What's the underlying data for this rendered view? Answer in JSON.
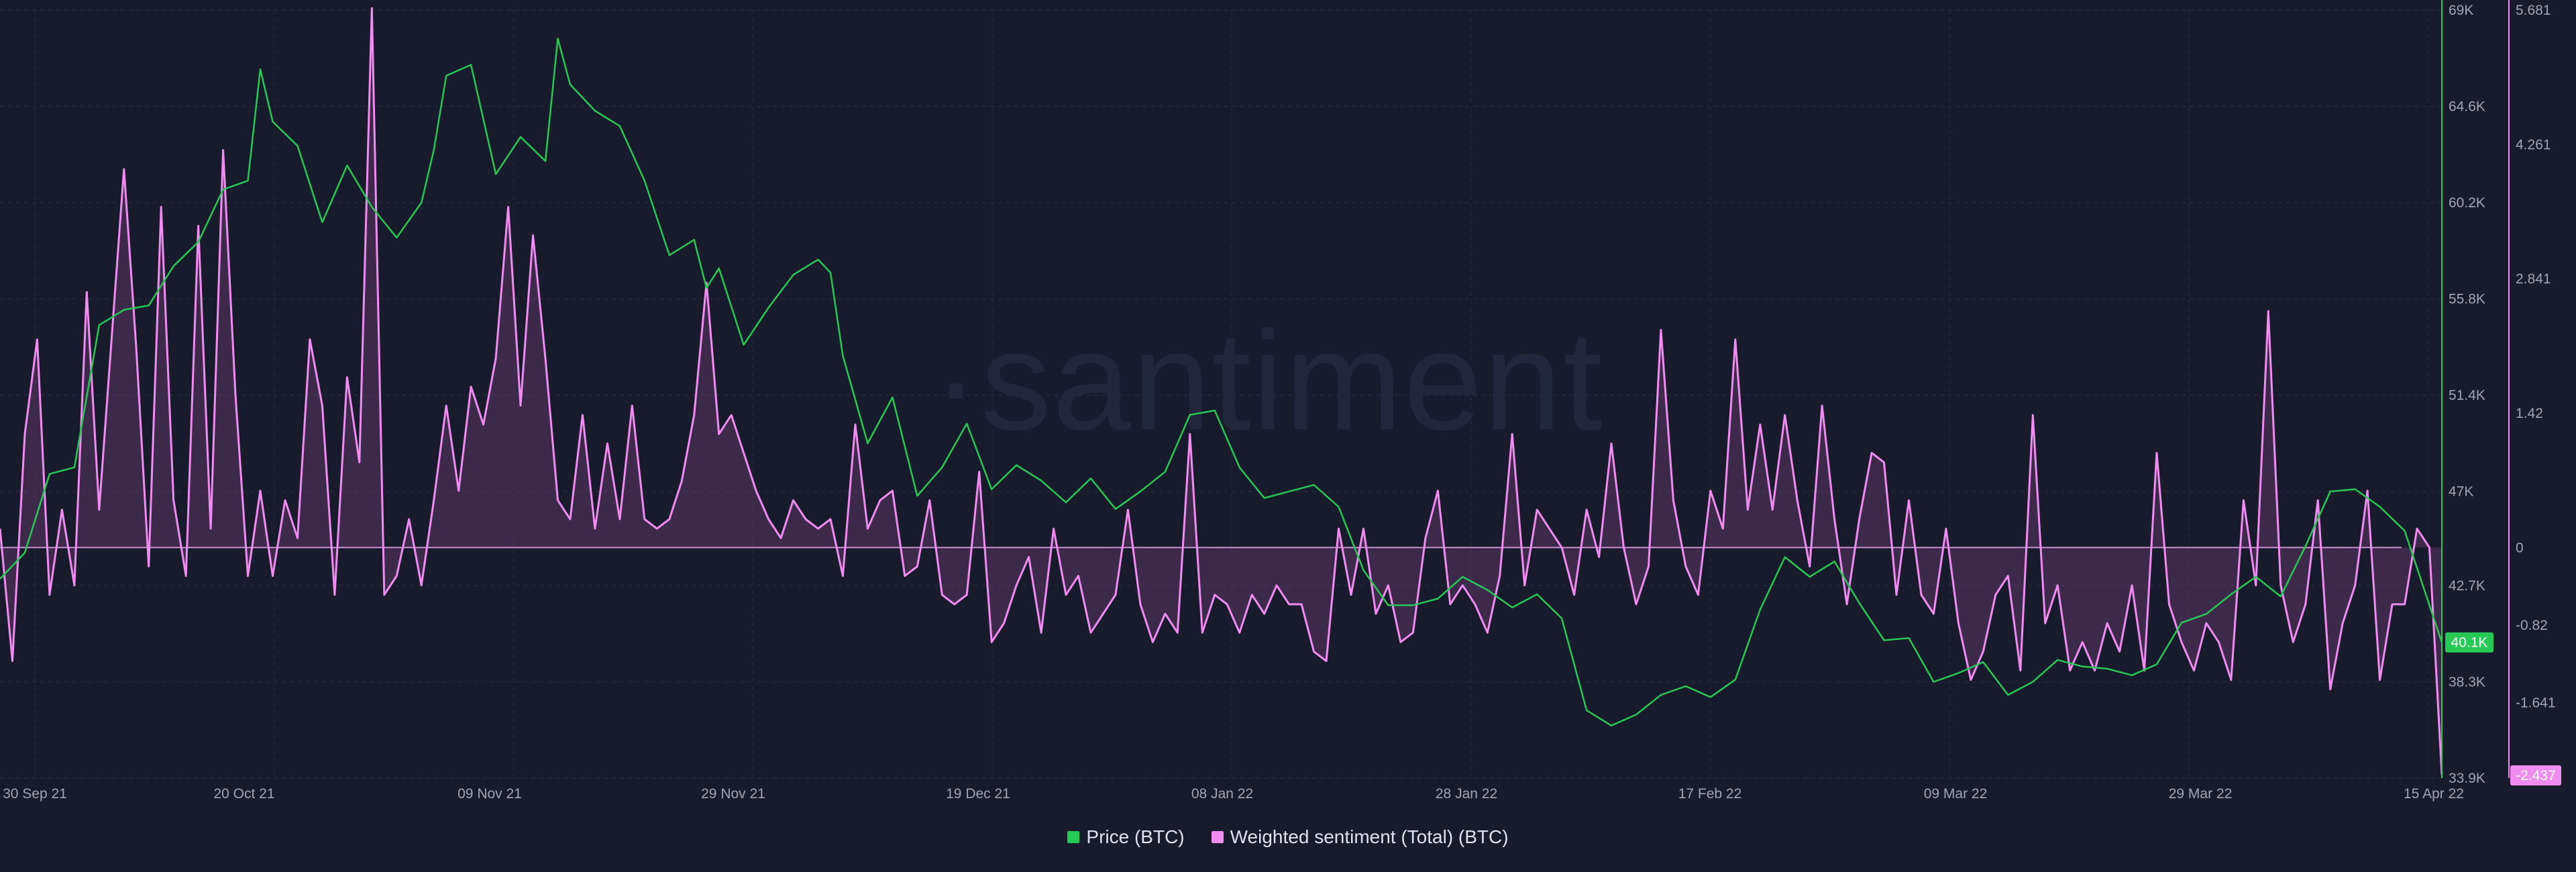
{
  "chart_data": {
    "type": "line",
    "watermark": "·santiment",
    "x_tick_labels": [
      "30 Sep 21",
      "20 Oct 21",
      "09 Nov 21",
      "29 Nov 21",
      "19 Dec 21",
      "08 Jan 22",
      "28 Jan 22",
      "17 Feb 22",
      "09 Mar 22",
      "29 Mar 22",
      "15 Apr 22"
    ],
    "x_range_days": [
      0,
      197
    ],
    "price_axis": {
      "range": [
        33900,
        69000
      ],
      "tick_values": [
        69000,
        64600,
        60200,
        55800,
        51400,
        47000,
        42700,
        38300,
        33900
      ],
      "tick_labels": [
        "69K",
        "64.6K",
        "60.2K",
        "55.8K",
        "51.4K",
        "47K",
        "42.7K",
        "38.3K",
        "33.9K"
      ],
      "current_label": "40.1K",
      "current_value": 40100
    },
    "sentiment_axis": {
      "range": [
        -2.437,
        5.681
      ],
      "tick_values": [
        5.681,
        4.261,
        2.841,
        1.42,
        0,
        -0.82,
        -1.641,
        -2.437
      ],
      "tick_labels": [
        "5.681",
        "4.261",
        "2.841",
        "1.42",
        "0",
        "-0.82",
        "-1.641"
      ],
      "current_label": "-2.437",
      "current_value": -2.437
    },
    "series": [
      {
        "name": "Price (BTC)",
        "color": "#26c953",
        "axis": "price",
        "points": [
          [
            0,
            43000
          ],
          [
            2,
            44200
          ],
          [
            4,
            47800
          ],
          [
            6,
            48100
          ],
          [
            8,
            54600
          ],
          [
            10,
            55300
          ],
          [
            12,
            55500
          ],
          [
            14,
            57300
          ],
          [
            16,
            58400
          ],
          [
            18,
            60800
          ],
          [
            20,
            61200
          ],
          [
            21,
            66300
          ],
          [
            22,
            63900
          ],
          [
            24,
            62800
          ],
          [
            26,
            59300
          ],
          [
            28,
            61900
          ],
          [
            30,
            60000
          ],
          [
            32,
            58600
          ],
          [
            34,
            60200
          ],
          [
            35,
            62600
          ],
          [
            36,
            66000
          ],
          [
            38,
            66500
          ],
          [
            40,
            61500
          ],
          [
            42,
            63200
          ],
          [
            44,
            62100
          ],
          [
            45,
            67700
          ],
          [
            46,
            65600
          ],
          [
            48,
            64400
          ],
          [
            50,
            63700
          ],
          [
            52,
            61200
          ],
          [
            54,
            57800
          ],
          [
            56,
            58500
          ],
          [
            57,
            56300
          ],
          [
            58,
            57200
          ],
          [
            60,
            53700
          ],
          [
            62,
            55400
          ],
          [
            64,
            56900
          ],
          [
            66,
            57600
          ],
          [
            67,
            57000
          ],
          [
            68,
            53200
          ],
          [
            70,
            49200
          ],
          [
            72,
            51300
          ],
          [
            74,
            46800
          ],
          [
            76,
            48100
          ],
          [
            78,
            50100
          ],
          [
            80,
            47100
          ],
          [
            82,
            48200
          ],
          [
            84,
            47500
          ],
          [
            86,
            46500
          ],
          [
            88,
            47600
          ],
          [
            90,
            46200
          ],
          [
            92,
            47000
          ],
          [
            94,
            47900
          ],
          [
            96,
            50500
          ],
          [
            98,
            50700
          ],
          [
            100,
            48100
          ],
          [
            102,
            46700
          ],
          [
            104,
            47000
          ],
          [
            106,
            47300
          ],
          [
            108,
            46300
          ],
          [
            110,
            43400
          ],
          [
            112,
            41800
          ],
          [
            114,
            41800
          ],
          [
            116,
            42100
          ],
          [
            118,
            43100
          ],
          [
            120,
            42500
          ],
          [
            122,
            41700
          ],
          [
            124,
            42300
          ],
          [
            126,
            41200
          ],
          [
            128,
            37000
          ],
          [
            130,
            36300
          ],
          [
            132,
            36800
          ],
          [
            134,
            37700
          ],
          [
            136,
            38100
          ],
          [
            138,
            37600
          ],
          [
            140,
            38400
          ],
          [
            142,
            41600
          ],
          [
            144,
            44000
          ],
          [
            146,
            43100
          ],
          [
            148,
            43800
          ],
          [
            150,
            41900
          ],
          [
            152,
            40200
          ],
          [
            154,
            40300
          ],
          [
            156,
            38300
          ],
          [
            158,
            38700
          ],
          [
            160,
            39200
          ],
          [
            162,
            37700
          ],
          [
            164,
            38300
          ],
          [
            166,
            39300
          ],
          [
            168,
            39000
          ],
          [
            170,
            38900
          ],
          [
            172,
            38600
          ],
          [
            174,
            39100
          ],
          [
            176,
            41000
          ],
          [
            178,
            41400
          ],
          [
            180,
            42300
          ],
          [
            182,
            43100
          ],
          [
            184,
            42200
          ],
          [
            186,
            44500
          ],
          [
            188,
            47000
          ],
          [
            190,
            47100
          ],
          [
            192,
            46300
          ],
          [
            194,
            45200
          ],
          [
            196,
            41800
          ],
          [
            197,
            40100
          ]
        ]
      },
      {
        "name": "Weighted sentiment (Total) (BTC)",
        "color": "#f08cf0",
        "axis": "sentiment",
        "points": [
          [
            0,
            0.2
          ],
          [
            1,
            -1.2
          ],
          [
            2,
            1.2
          ],
          [
            3,
            2.2
          ],
          [
            4,
            -0.5
          ],
          [
            5,
            0.4
          ],
          [
            6,
            -0.4
          ],
          [
            7,
            2.7
          ],
          [
            8,
            0.4
          ],
          [
            10,
            4.0
          ],
          [
            11,
            2.1
          ],
          [
            12,
            -0.2
          ],
          [
            13,
            3.6
          ],
          [
            14,
            0.5
          ],
          [
            15,
            -0.3
          ],
          [
            16,
            3.4
          ],
          [
            17,
            0.2
          ],
          [
            18,
            4.2
          ],
          [
            19,
            1.6
          ],
          [
            20,
            -0.3
          ],
          [
            21,
            0.6
          ],
          [
            22,
            -0.3
          ],
          [
            23,
            0.5
          ],
          [
            24,
            0.1
          ],
          [
            25,
            2.2
          ],
          [
            26,
            1.5
          ],
          [
            27,
            -0.5
          ],
          [
            28,
            1.8
          ],
          [
            29,
            0.9
          ],
          [
            30,
            5.7
          ],
          [
            31,
            -0.5
          ],
          [
            32,
            -0.3
          ],
          [
            33,
            0.3
          ],
          [
            34,
            -0.4
          ],
          [
            35,
            0.5
          ],
          [
            36,
            1.5
          ],
          [
            37,
            0.6
          ],
          [
            38,
            1.7
          ],
          [
            39,
            1.3
          ],
          [
            40,
            2.0
          ],
          [
            41,
            3.6
          ],
          [
            42,
            1.5
          ],
          [
            43,
            3.3
          ],
          [
            44,
            2.0
          ],
          [
            45,
            0.5
          ],
          [
            46,
            0.3
          ],
          [
            47,
            1.4
          ],
          [
            48,
            0.2
          ],
          [
            49,
            1.1
          ],
          [
            50,
            0.3
          ],
          [
            51,
            1.5
          ],
          [
            52,
            0.3
          ],
          [
            53,
            0.2
          ],
          [
            54,
            0.3
          ],
          [
            55,
            0.7
          ],
          [
            56,
            1.4
          ],
          [
            57,
            2.8
          ],
          [
            58,
            1.2
          ],
          [
            59,
            1.4
          ],
          [
            60,
            1.0
          ],
          [
            61,
            0.6
          ],
          [
            62,
            0.3
          ],
          [
            63,
            0.1
          ],
          [
            64,
            0.5
          ],
          [
            65,
            0.3
          ],
          [
            66,
            0.2
          ],
          [
            67,
            0.3
          ],
          [
            68,
            -0.3
          ],
          [
            69,
            1.3
          ],
          [
            70,
            0.2
          ],
          [
            71,
            0.5
          ],
          [
            72,
            0.6
          ],
          [
            73,
            -0.3
          ],
          [
            74,
            -0.2
          ],
          [
            75,
            0.5
          ],
          [
            76,
            -0.5
          ],
          [
            77,
            -0.6
          ],
          [
            78,
            -0.5
          ],
          [
            79,
            0.8
          ],
          [
            80,
            -1.0
          ],
          [
            81,
            -0.8
          ],
          [
            82,
            -0.4
          ],
          [
            83,
            -0.1
          ],
          [
            84,
            -0.9
          ],
          [
            85,
            0.2
          ],
          [
            86,
            -0.5
          ],
          [
            87,
            -0.3
          ],
          [
            88,
            -0.9
          ],
          [
            89,
            -0.7
          ],
          [
            90,
            -0.5
          ],
          [
            91,
            0.4
          ],
          [
            92,
            -0.6
          ],
          [
            93,
            -1.0
          ],
          [
            94,
            -0.7
          ],
          [
            95,
            -0.9
          ],
          [
            96,
            1.2
          ],
          [
            97,
            -0.9
          ],
          [
            98,
            -0.5
          ],
          [
            99,
            -0.6
          ],
          [
            100,
            -0.9
          ],
          [
            101,
            -0.5
          ],
          [
            102,
            -0.7
          ],
          [
            103,
            -0.4
          ],
          [
            104,
            -0.6
          ],
          [
            105,
            -0.6
          ],
          [
            106,
            -1.1
          ],
          [
            107,
            -1.2
          ],
          [
            108,
            0.2
          ],
          [
            109,
            -0.5
          ],
          [
            110,
            0.2
          ],
          [
            111,
            -0.7
          ],
          [
            112,
            -0.4
          ],
          [
            113,
            -1.0
          ],
          [
            114,
            -0.9
          ],
          [
            115,
            0.1
          ],
          [
            116,
            0.6
          ],
          [
            117,
            -0.6
          ],
          [
            118,
            -0.4
          ],
          [
            119,
            -0.6
          ],
          [
            120,
            -0.9
          ],
          [
            121,
            -0.3
          ],
          [
            122,
            1.2
          ],
          [
            123,
            -0.4
          ],
          [
            124,
            0.4
          ],
          [
            125,
            0.2
          ],
          [
            126,
            0.0
          ],
          [
            127,
            -0.5
          ],
          [
            128,
            0.4
          ],
          [
            129,
            -0.1
          ],
          [
            130,
            1.1
          ],
          [
            131,
            0.0
          ],
          [
            132,
            -0.6
          ],
          [
            133,
            -0.2
          ],
          [
            134,
            2.3
          ],
          [
            135,
            0.5
          ],
          [
            136,
            -0.2
          ],
          [
            137,
            -0.5
          ],
          [
            138,
            0.6
          ],
          [
            139,
            0.2
          ],
          [
            140,
            2.2
          ],
          [
            141,
            0.4
          ],
          [
            142,
            1.3
          ],
          [
            143,
            0.4
          ],
          [
            144,
            1.4
          ],
          [
            145,
            0.5
          ],
          [
            146,
            -0.2
          ],
          [
            147,
            1.5
          ],
          [
            148,
            0.3
          ],
          [
            149,
            -0.6
          ],
          [
            150,
            0.3
          ],
          [
            151,
            1.0
          ],
          [
            152,
            0.9
          ],
          [
            153,
            -0.5
          ],
          [
            154,
            0.5
          ],
          [
            155,
            -0.5
          ],
          [
            156,
            -0.7
          ],
          [
            157,
            0.2
          ],
          [
            158,
            -0.8
          ],
          [
            159,
            -1.4
          ],
          [
            160,
            -1.1
          ],
          [
            161,
            -0.5
          ],
          [
            162,
            -0.3
          ],
          [
            163,
            -1.3
          ],
          [
            164,
            1.4
          ],
          [
            165,
            -0.8
          ],
          [
            166,
            -0.4
          ],
          [
            167,
            -1.3
          ],
          [
            168,
            -1.0
          ],
          [
            169,
            -1.3
          ],
          [
            170,
            -0.8
          ],
          [
            171,
            -1.1
          ],
          [
            172,
            -0.4
          ],
          [
            173,
            -1.3
          ],
          [
            174,
            1.0
          ],
          [
            175,
            -0.6
          ],
          [
            176,
            -1.0
          ],
          [
            177,
            -1.3
          ],
          [
            178,
            -0.8
          ],
          [
            179,
            -1.0
          ],
          [
            180,
            -1.4
          ],
          [
            181,
            0.5
          ],
          [
            182,
            -0.4
          ],
          [
            183,
            2.5
          ],
          [
            184,
            -0.4
          ],
          [
            185,
            -1.0
          ],
          [
            186,
            -0.6
          ],
          [
            187,
            0.5
          ],
          [
            188,
            -1.5
          ],
          [
            189,
            -0.8
          ],
          [
            190,
            -0.4
          ],
          [
            191,
            0.6
          ],
          [
            192,
            -1.4
          ],
          [
            193,
            -0.6
          ],
          [
            194,
            -0.6
          ],
          [
            195,
            0.2
          ],
          [
            196,
            0.0
          ],
          [
            197,
            -2.4
          ]
        ]
      }
    ],
    "legend": [
      {
        "label": "Price (BTC)",
        "color": "#26c953"
      },
      {
        "label": "Weighted sentiment (Total) (BTC)",
        "color": "#f08cf0"
      }
    ]
  }
}
